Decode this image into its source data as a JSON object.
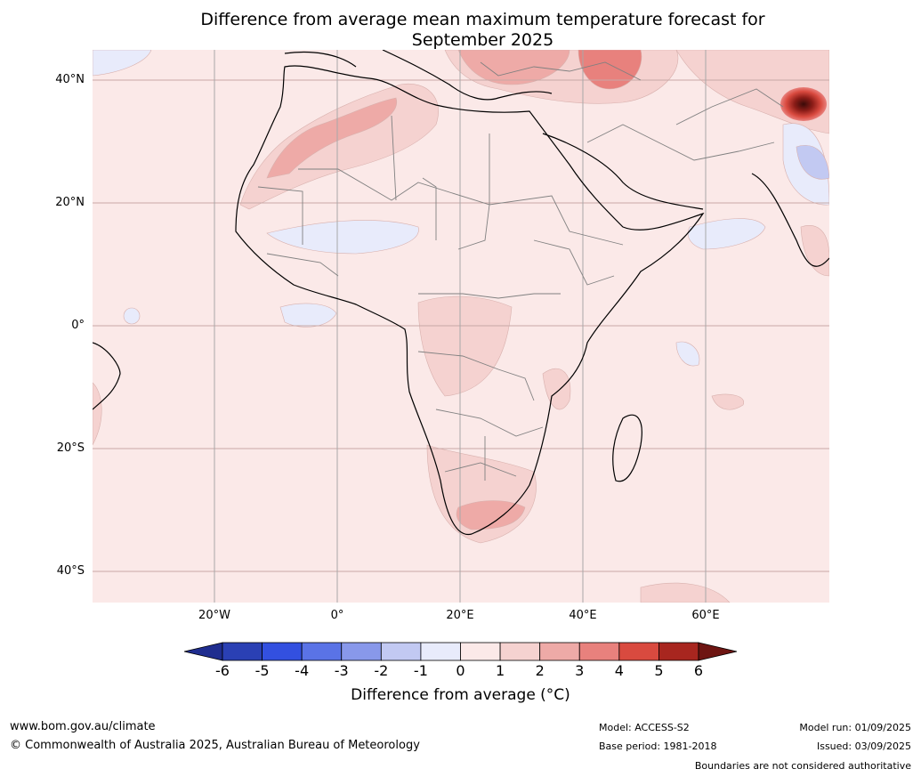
{
  "title_line1": "Difference from average mean maximum temperature forecast for",
  "title_line2": "September 2025",
  "lat_labels": [
    "40°N",
    "20°N",
    "0°",
    "20°S",
    "40°S"
  ],
  "lon_labels": [
    "20°W",
    "0°",
    "20°E",
    "40°E",
    "60°E"
  ],
  "colorbar": {
    "ticks": [
      "-6",
      "-5",
      "-4",
      "-3",
      "-2",
      "-1",
      "0",
      "1",
      "2",
      "3",
      "4",
      "5",
      "6"
    ],
    "colors": [
      "#1f2d8f",
      "#2a40b4",
      "#3350e0",
      "#5a73e6",
      "#8898ea",
      "#c2c9f2",
      "#e8ebfb",
      "#fbe9e8",
      "#f5d2d0",
      "#eeaaa7",
      "#e8817d",
      "#d94a3f",
      "#a8261f",
      "#6e1512"
    ],
    "label": "Difference from average (°C)"
  },
  "footer": {
    "url": "www.bom.gov.au/climate",
    "copyright": "© Commonwealth of Australia 2025, Australian Bureau of Meteorology",
    "model": "Model: ACCESS-S2",
    "base_period": "Base period: 1981-2018",
    "model_run": "Model run: 01/09/2025",
    "issued": "Issued: 03/09/2025",
    "disclaimer": "Boundaries are not considered authoritative"
  }
}
